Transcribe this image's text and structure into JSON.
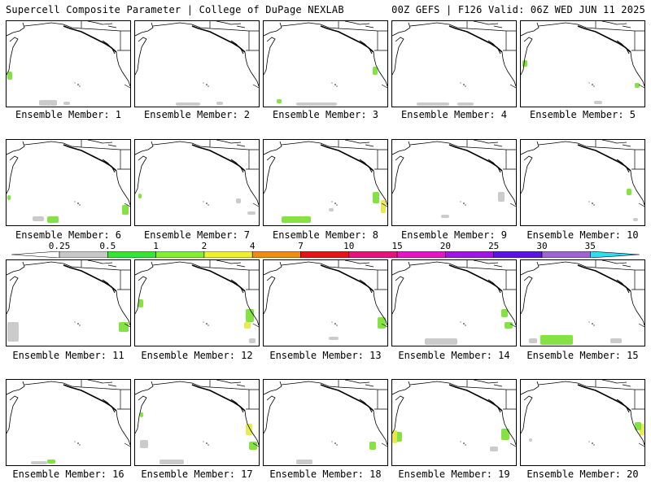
{
  "header": {
    "title_left": "Supercell Composite Parameter | College of DuPage NEXLAB",
    "title_right": "00Z GEFS | F126 Valid: 06Z WED JUN 11 2025"
  },
  "panels": [
    {
      "label": "Ensemble Member: 1"
    },
    {
      "label": "Ensemble Member: 2"
    },
    {
      "label": "Ensemble Member: 3"
    },
    {
      "label": "Ensemble Member: 4"
    },
    {
      "label": "Ensemble Member: 5"
    },
    {
      "label": "Ensemble Member: 6"
    },
    {
      "label": "Ensemble Member: 7"
    },
    {
      "label": "Ensemble Member: 8"
    },
    {
      "label": "Ensemble Member: 9"
    },
    {
      "label": "Ensemble Member: 10"
    },
    {
      "label": "Ensemble Member: 11"
    },
    {
      "label": "Ensemble Member: 12"
    },
    {
      "label": "Ensemble Member: 13"
    },
    {
      "label": "Ensemble Member: 14"
    },
    {
      "label": "Ensemble Member: 15"
    },
    {
      "label": "Ensemble Member: 16"
    },
    {
      "label": "Ensemble Member: 17"
    },
    {
      "label": "Ensemble Member: 18"
    },
    {
      "label": "Ensemble Member: 19"
    },
    {
      "label": "Ensemble Member: 20"
    }
  ],
  "colorbar": {
    "labels": [
      "0.25",
      "0.5",
      "1",
      "2",
      "4",
      "7",
      "10",
      "15",
      "20",
      "25",
      "30",
      "35"
    ],
    "colors": [
      "#c8c8c8",
      "#32e632",
      "#82f032",
      "#f0f032",
      "#f08c14",
      "#e61414",
      "#e6147a",
      "#e614c8",
      "#a014e6",
      "#5a14e6",
      "#a064d2",
      "#32dcf0"
    ]
  }
}
